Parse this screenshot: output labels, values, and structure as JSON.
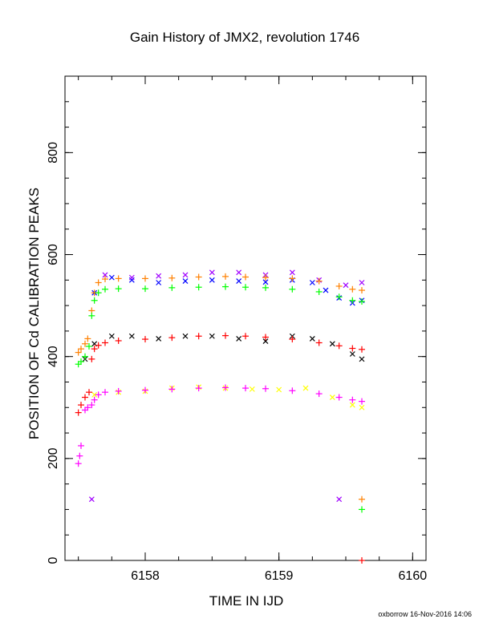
{
  "chart_data": {
    "type": "scatter",
    "title": "Gain History of JMX2, revolution 1746",
    "xlabel": "TIME IN IJD",
    "ylabel": "POSITION OF Cd CALIBRATION PEAKS",
    "footer": "oxborrow 16-Nov-2016 14:06",
    "xlim": [
      6157.4,
      6160.1
    ],
    "ylim": [
      0,
      950
    ],
    "xticks": [
      6158,
      6159,
      6160
    ],
    "yticks": [
      0,
      200,
      400,
      600,
      800
    ],
    "x_minor_step": 0.25,
    "y_minor_step": 50,
    "grid": false,
    "legend": "none",
    "series": [
      {
        "marker": "x",
        "color": "#0000ff",
        "x": [
          6157.62,
          6157.75,
          6157.9,
          6158.1,
          6158.3,
          6158.5,
          6158.7,
          6158.9,
          6159.1,
          6159.25,
          6159.35,
          6159.45,
          6159.55,
          6159.62
        ],
        "y": [
          525,
          555,
          550,
          545,
          548,
          550,
          548,
          546,
          550,
          545,
          530,
          515,
          505,
          510
        ]
      },
      {
        "marker": "x",
        "color": "#a000ff",
        "x": [
          6157.7,
          6157.9,
          6158.1,
          6158.3,
          6158.5,
          6158.7,
          6158.9,
          6159.1,
          6159.3,
          6159.5,
          6159.62
        ],
        "y": [
          560,
          555,
          558,
          560,
          565,
          565,
          560,
          565,
          550,
          540,
          545
        ]
      },
      {
        "marker": "x",
        "color": "#000000",
        "x": [
          6157.55,
          6157.62,
          6157.75,
          6157.9,
          6158.1,
          6158.3,
          6158.5,
          6158.7,
          6158.9,
          6159.1,
          6159.25,
          6159.4,
          6159.55,
          6159.62
        ],
        "y": [
          395,
          425,
          440,
          440,
          435,
          440,
          440,
          435,
          430,
          440,
          435,
          425,
          405,
          395
        ]
      },
      {
        "marker": "x",
        "color": "#ffff00",
        "x": [
          6157.62,
          6157.8,
          6158.0,
          6158.2,
          6158.4,
          6158.6,
          6158.8,
          6159.0,
          6159.2,
          6159.4,
          6159.55,
          6159.62
        ],
        "y": [
          325,
          330,
          332,
          338,
          340,
          338,
          336,
          335,
          338,
          320,
          305,
          300
        ]
      },
      {
        "marker": "+",
        "color": "#ff8000",
        "x": [
          6157.5,
          6157.52,
          6157.55,
          6157.57,
          6157.6,
          6157.62,
          6157.65,
          6157.7,
          6157.8,
          6158.0,
          6158.2,
          6158.4,
          6158.6,
          6158.75,
          6158.9,
          6159.1,
          6159.3,
          6159.45,
          6159.55,
          6159.62
        ],
        "y": [
          408,
          415,
          425,
          435,
          490,
          525,
          545,
          552,
          553,
          553,
          554,
          556,
          557,
          556,
          555,
          553,
          548,
          538,
          532,
          530
        ]
      },
      {
        "marker": "+",
        "color": "#00ff00",
        "x": [
          6157.5,
          6157.52,
          6157.55,
          6157.58,
          6157.6,
          6157.62,
          6157.65,
          6157.7,
          6157.8,
          6158.0,
          6158.2,
          6158.4,
          6158.6,
          6158.75,
          6158.9,
          6159.1,
          6159.3,
          6159.45,
          6159.55,
          6159.62
        ],
        "y": [
          385,
          390,
          400,
          420,
          480,
          510,
          525,
          532,
          533,
          533,
          535,
          536,
          537,
          536,
          535,
          532,
          527,
          517,
          510,
          508
        ]
      },
      {
        "marker": "+",
        "color": "#ff0000",
        "x": [
          6157.5,
          6157.52,
          6157.55,
          6157.58,
          6157.6,
          6157.62,
          6157.65,
          6157.7,
          6157.8,
          6158.0,
          6158.2,
          6158.4,
          6158.6,
          6158.75,
          6158.9,
          6159.1,
          6159.3,
          6159.45,
          6159.55,
          6159.62
        ],
        "y": [
          290,
          305,
          320,
          330,
          395,
          415,
          422,
          427,
          431,
          434,
          437,
          440,
          441,
          440,
          438,
          434,
          427,
          421,
          416,
          414
        ]
      },
      {
        "marker": "+",
        "color": "#ff00ff",
        "x": [
          6157.5,
          6157.51,
          6157.52,
          6157.55,
          6157.57,
          6157.6,
          6157.62,
          6157.65,
          6157.7,
          6157.8,
          6158.0,
          6158.2,
          6158.4,
          6158.6,
          6158.75,
          6158.9,
          6159.1,
          6159.3,
          6159.45,
          6159.55,
          6159.62
        ],
        "y": [
          190,
          205,
          225,
          295,
          300,
          305,
          315,
          325,
          330,
          332,
          334,
          336,
          338,
          339,
          338,
          337,
          333,
          327,
          320,
          315,
          312
        ]
      },
      {
        "marker": "x",
        "color": "#a000ff",
        "x": [
          6157.6,
          6159.45
        ],
        "y": [
          120,
          120
        ]
      },
      {
        "marker": "+",
        "color": "#ff8000",
        "x": [
          6159.62
        ],
        "y": [
          120
        ]
      },
      {
        "marker": "+",
        "color": "#00ff00",
        "x": [
          6159.62
        ],
        "y": [
          100
        ]
      },
      {
        "marker": "+",
        "color": "#ff0000",
        "x": [
          6159.62
        ],
        "y": [
          0
        ]
      }
    ]
  }
}
